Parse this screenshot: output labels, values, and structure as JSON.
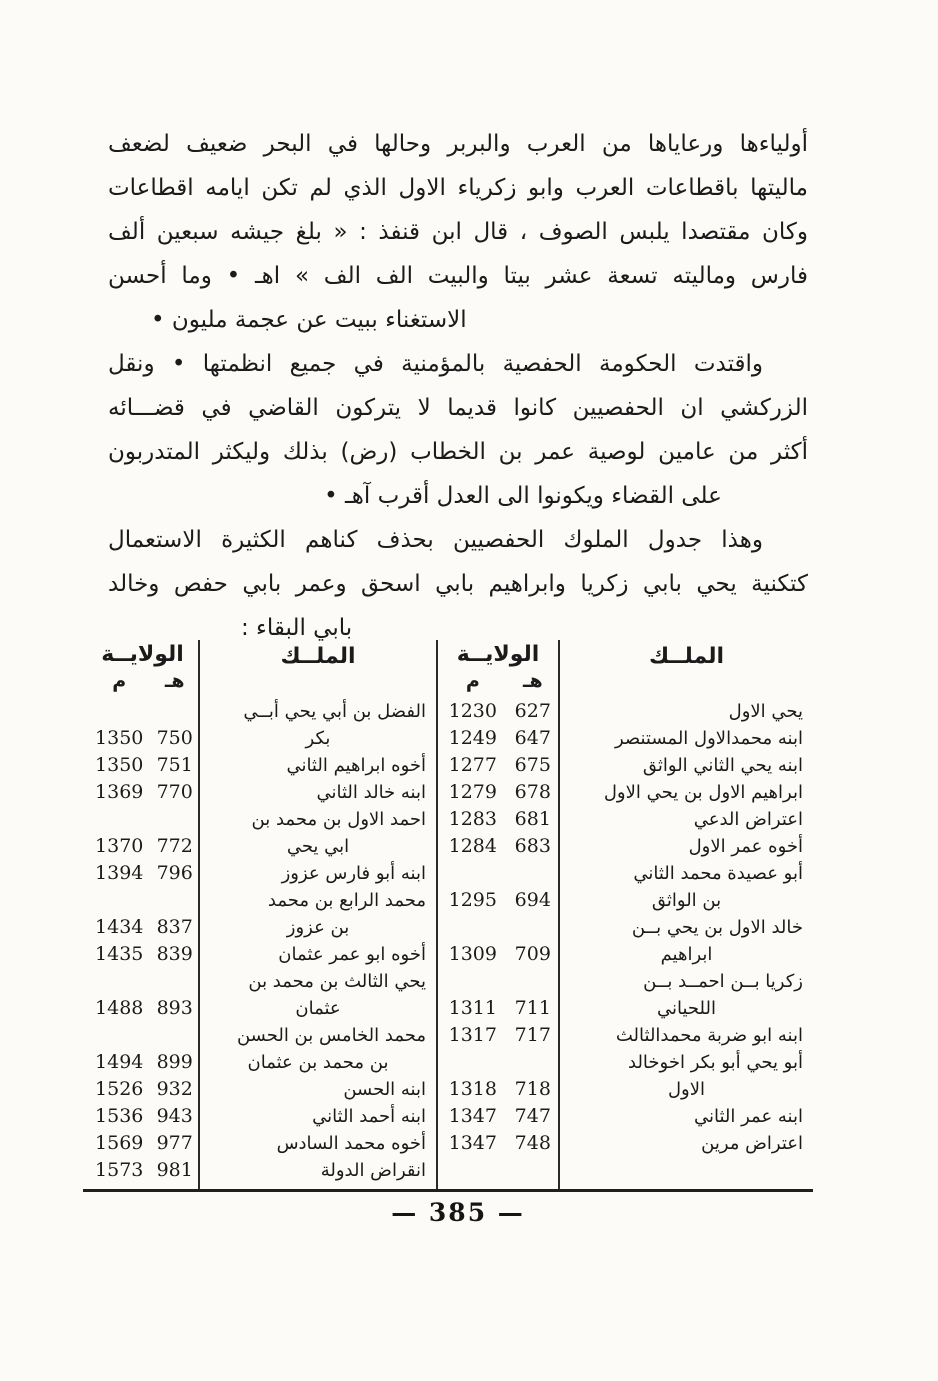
{
  "page": {
    "number": "385",
    "footer": "— 385 —"
  },
  "paragraphs": [
    {
      "lines": [
        "أولياءها ورعاياها من العرب والبربر وحالها في البحر ضعيف لضعف",
        "ماليتها باقطاعات العرب وابو زكرياء الاول الذي لم تكن ايامه اقطاعات",
        "وكان مقتصدا يلبس الصوف ، قال ابن قنفذ : « بلغ جيشه سبعين ألف",
        "فارس وماليته تسعة عشر بيتا والبيت الف الف » اهـ • وما أحسن",
        "الاستغناء ببيت عن عجمة مليون •"
      ]
    },
    {
      "lines": [
        "واقتدت الحكومة الحفصية بالمؤمنية في جميع انظمتها • ونقل",
        "الزركشي ان الحفصيين كانوا قديما لا يتركون القاضي في قضـــائه",
        "أكثر من عامين لوصية عمر بن الخطاب (رض) بذلك وليكثر المتدربون",
        "على القضاء ويكونوا الى العدل أقرب آهـ •"
      ]
    },
    {
      "lines": [
        "وهذا جدول الملوك الحفصيين بحذف كناهم الكثيرة الاستعمال",
        "كتكنية يحي بابي زكريا وابراهيم بابي اسحق وعمر بابي حفص وخالد",
        "بابي البقاء :"
      ]
    }
  ],
  "table": {
    "right_half": {
      "king_header": "الملــك",
      "reign_header": "الولايــة",
      "hijri_label": "هـ",
      "greg_label": "م",
      "entries": [
        {
          "name_lines": [
            "يحي الاول"
          ],
          "num_line": 0,
          "hijri": "627",
          "greg": "1230"
        },
        {
          "name_lines": [
            "ابنه محمدالاول المستنصر"
          ],
          "num_line": 0,
          "hijri": "647",
          "greg": "1249"
        },
        {
          "name_lines": [
            "ابنه يحي الثاني الواثق"
          ],
          "num_line": 0,
          "hijri": "675",
          "greg": "1277"
        },
        {
          "name_lines": [
            "ابراهيم الاول بن يحي الاول"
          ],
          "num_line": 0,
          "hijri": "678",
          "greg": "1279"
        },
        {
          "name_lines": [
            "اعتراض الدعي"
          ],
          "num_line": 0,
          "hijri": "681",
          "greg": "1283"
        },
        {
          "name_lines": [
            "أخوه عمر الاول"
          ],
          "num_line": 0,
          "hijri": "683",
          "greg": "1284"
        },
        {
          "name_lines": [
            "أبو عصيدة محمد الثاني",
            "بن الواثق"
          ],
          "num_line": 1,
          "hijri": "694",
          "greg": "1295"
        },
        {
          "name_lines": [
            "خالد الاول بن يحي بــن",
            "ابراهيم"
          ],
          "num_line": 1,
          "hijri": "709",
          "greg": "1309"
        },
        {
          "name_lines": [
            "زكريا بــن احمــد بــن",
            "اللحياني"
          ],
          "num_line": 1,
          "hijri": "711",
          "greg": "1311"
        },
        {
          "name_lines": [
            "ابنه ابو ضربة محمدالثالث"
          ],
          "num_line": 0,
          "hijri": "717",
          "greg": "1317"
        },
        {
          "name_lines": [
            "أبو يحي أبو بكر اخوخالد",
            "الاول"
          ],
          "num_line": 1,
          "hijri": "718",
          "greg": "1318"
        },
        {
          "name_lines": [
            "ابنه عمر الثاني"
          ],
          "num_line": 0,
          "hijri": "747",
          "greg": "1347"
        },
        {
          "name_lines": [
            "اعتراض مرين"
          ],
          "num_line": 0,
          "hijri": "748",
          "greg": "1347"
        }
      ]
    },
    "left_half": {
      "king_header": "الملــك",
      "reign_header": "الولايــة",
      "hijri_label": "هـ",
      "greg_label": "م",
      "entries": [
        {
          "name_lines": [
            "الفضل بن أبي يحي أبــي",
            "بكر"
          ],
          "num_line": 1,
          "hijri": "750",
          "greg": "1350"
        },
        {
          "name_lines": [
            "أخوه ابراهيم الثاني"
          ],
          "num_line": 0,
          "hijri": "751",
          "greg": "1350"
        },
        {
          "name_lines": [
            "ابنه خالد الثاني"
          ],
          "num_line": 0,
          "hijri": "770",
          "greg": "1369"
        },
        {
          "name_lines": [
            "احمد الاول بن محمد بن",
            "ابي يحي"
          ],
          "num_line": 1,
          "hijri": "772",
          "greg": "1370"
        },
        {
          "name_lines": [
            "ابنه أبو فارس عزوز"
          ],
          "num_line": 0,
          "hijri": "796",
          "greg": "1394"
        },
        {
          "name_lines": [
            "محمد الرابع بن محمد",
            "بن عزوز"
          ],
          "num_line": 1,
          "hijri": "837",
          "greg": "1434"
        },
        {
          "name_lines": [
            "أخوه ابو عمر عثمان"
          ],
          "num_line": 0,
          "hijri": "839",
          "greg": "1435"
        },
        {
          "name_lines": [
            "يحي الثالث بن محمد بن",
            "عثمان"
          ],
          "num_line": 1,
          "hijri": "893",
          "greg": "1488"
        },
        {
          "name_lines": [
            "محمد الخامس بن الحسن",
            "بن محمد بن عثمان"
          ],
          "num_line": 1,
          "hijri": "899",
          "greg": "1494"
        },
        {
          "name_lines": [
            "ابنه الحسن"
          ],
          "num_line": 0,
          "hijri": "932",
          "greg": "1526"
        },
        {
          "name_lines": [
            "ابنه أحمد الثاني"
          ],
          "num_line": 0,
          "hijri": "943",
          "greg": "1536"
        },
        {
          "name_lines": [
            "أخوه محمد السادس"
          ],
          "num_line": 0,
          "hijri": "977",
          "greg": "1569"
        },
        {
          "name_lines": [
            "انقراض الدولة"
          ],
          "num_line": 0,
          "hijri": "981",
          "greg": "1573"
        }
      ]
    }
  }
}
